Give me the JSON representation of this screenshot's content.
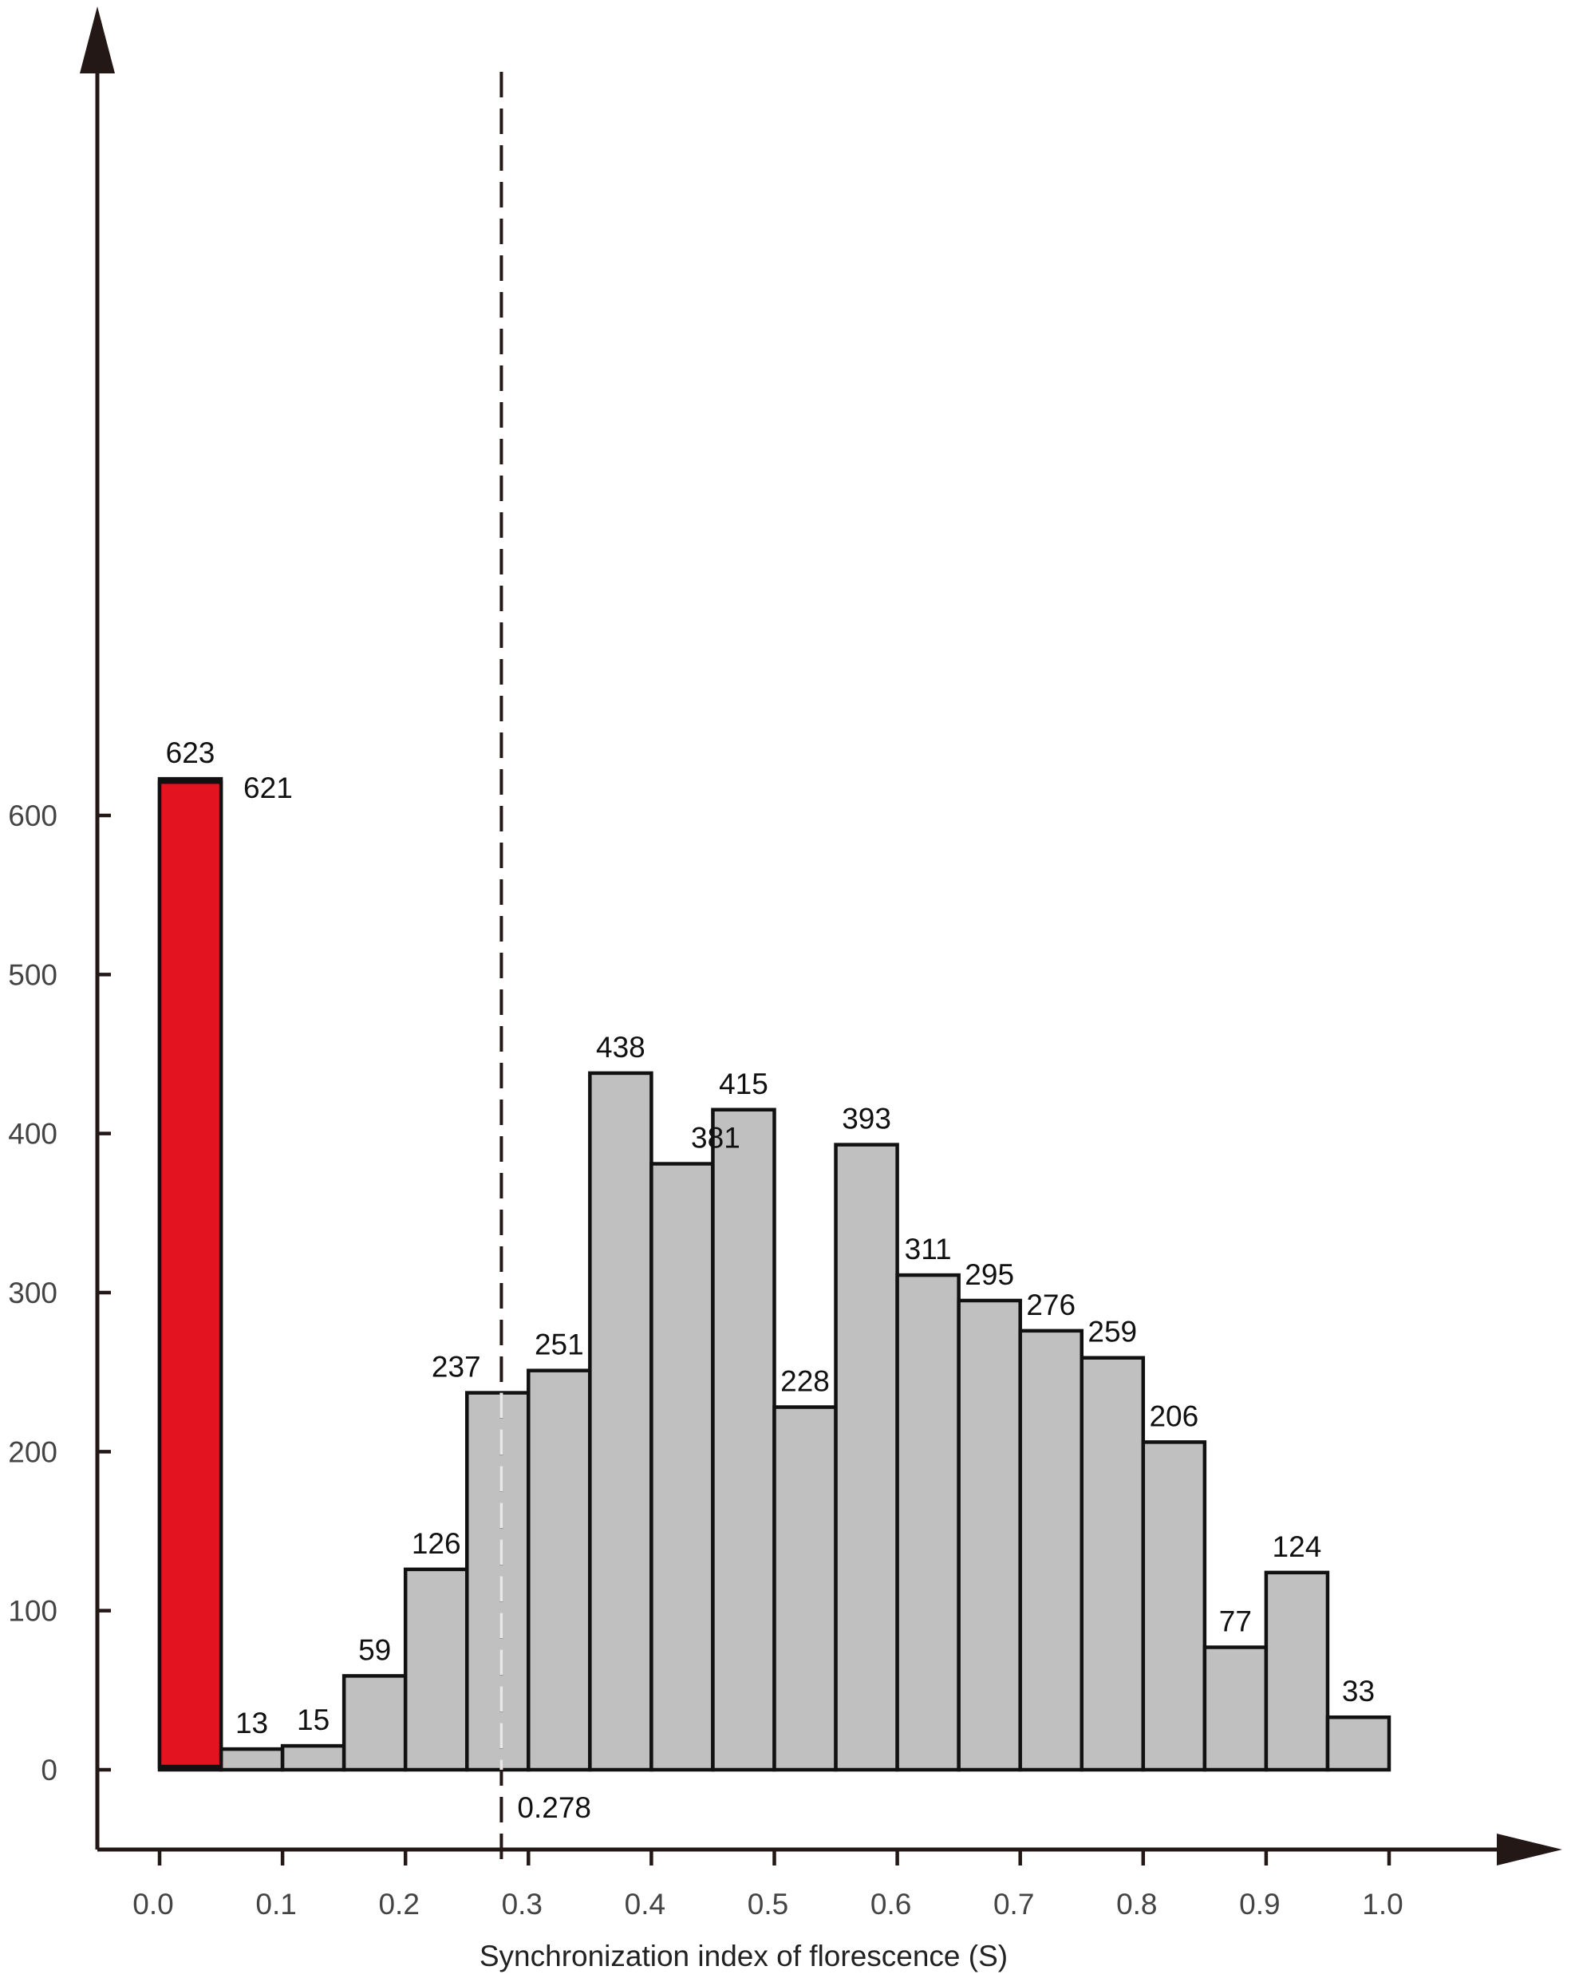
{
  "chart_data": {
    "type": "bar",
    "title": "",
    "xlabel": "Synchronization index of florescence (S)",
    "ylabel": "",
    "xlim": [
      0.0,
      1.0
    ],
    "ylim": [
      0,
      700
    ],
    "bin_width": 0.05,
    "x_ticks": [
      "0.0",
      "0.1",
      "0.2",
      "0.3",
      "0.4",
      "0.5",
      "0.6",
      "0.7",
      "0.8",
      "0.9",
      "1.0"
    ],
    "y_ticks": [
      "0",
      "100",
      "200",
      "300",
      "400",
      "500",
      "600"
    ],
    "bins": [
      {
        "x0": 0.0,
        "x1": 0.05,
        "value": 623,
        "label": "623"
      },
      {
        "x0": 0.05,
        "x1": 0.1,
        "value": 13,
        "label": "13"
      },
      {
        "x0": 0.1,
        "x1": 0.15,
        "value": 15,
        "label": "15"
      },
      {
        "x0": 0.15,
        "x1": 0.2,
        "value": 59,
        "label": "59"
      },
      {
        "x0": 0.2,
        "x1": 0.25,
        "value": 126,
        "label": "126"
      },
      {
        "x0": 0.25,
        "x1": 0.3,
        "value": 237,
        "label": "237"
      },
      {
        "x0": 0.3,
        "x1": 0.35,
        "value": 251,
        "label": "251"
      },
      {
        "x0": 0.35,
        "x1": 0.4,
        "value": 438,
        "label": "438"
      },
      {
        "x0": 0.4,
        "x1": 0.45,
        "value": 381,
        "label": "381"
      },
      {
        "x0": 0.45,
        "x1": 0.5,
        "value": 415,
        "label": "415"
      },
      {
        "x0": 0.5,
        "x1": 0.55,
        "value": 228,
        "label": "228"
      },
      {
        "x0": 0.55,
        "x1": 0.6,
        "value": 393,
        "label": "393"
      },
      {
        "x0": 0.6,
        "x1": 0.65,
        "value": 311,
        "label": "311"
      },
      {
        "x0": 0.65,
        "x1": 0.7,
        "value": 295,
        "label": "295"
      },
      {
        "x0": 0.7,
        "x1": 0.75,
        "value": 276,
        "label": "276"
      },
      {
        "x0": 0.75,
        "x1": 0.8,
        "value": 259,
        "label": "259"
      },
      {
        "x0": 0.8,
        "x1": 0.85,
        "value": 206,
        "label": "206"
      },
      {
        "x0": 0.85,
        "x1": 0.9,
        "value": 77,
        "label": "77"
      },
      {
        "x0": 0.9,
        "x1": 0.95,
        "value": 124,
        "label": "124"
      },
      {
        "x0": 0.95,
        "x1": 1.0,
        "value": 33,
        "label": "33"
      }
    ],
    "highlight": {
      "x0": 0.0,
      "x1": 0.05,
      "value": 621,
      "baseline": 2,
      "label": "621",
      "color": "#e31420"
    },
    "threshold": {
      "x": 0.278,
      "label": "0.278",
      "style": "dashed"
    },
    "bar_color": "#c0c0c0",
    "edge_color": "#111111",
    "axis_color": "#231815",
    "grid": false,
    "legend": "none"
  }
}
